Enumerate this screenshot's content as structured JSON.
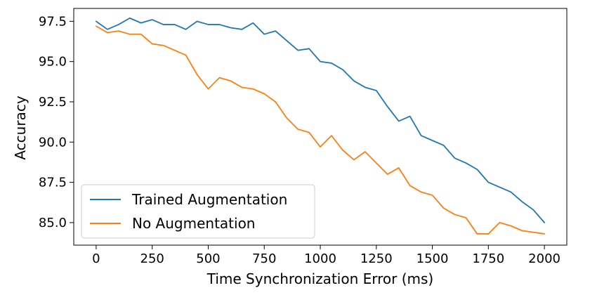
{
  "chart_data": {
    "type": "line",
    "xlabel": "Time Synchronization Error (ms)",
    "ylabel": "Accuracy",
    "xlim": [
      -100,
      2100
    ],
    "ylim": [
      83.6,
      98.3
    ],
    "x_ticks": [
      0,
      250,
      500,
      750,
      1000,
      1250,
      1500,
      1750,
      2000
    ],
    "x_tick_labels": [
      "0",
      "250",
      "500",
      "750",
      "1000",
      "1250",
      "1500",
      "1750",
      "2000"
    ],
    "y_ticks": [
      85.0,
      87.5,
      90.0,
      92.5,
      95.0,
      97.5
    ],
    "y_tick_labels": [
      "85.0",
      "87.5",
      "90.0",
      "92.5",
      "95.0",
      "97.5"
    ],
    "grid": false,
    "legend_position": "lower-left",
    "x": [
      0,
      50,
      100,
      150,
      200,
      250,
      300,
      350,
      400,
      450,
      500,
      550,
      600,
      650,
      700,
      750,
      800,
      850,
      900,
      950,
      1000,
      1050,
      1100,
      1150,
      1200,
      1250,
      1300,
      1350,
      1400,
      1450,
      1500,
      1550,
      1600,
      1650,
      1700,
      1750,
      1800,
      1850,
      1900,
      1950,
      2000
    ],
    "series": [
      {
        "name": "Trained Augmentation",
        "color": "#1f77b4",
        "values": [
          97.5,
          97.0,
          97.3,
          97.7,
          97.4,
          97.6,
          97.3,
          97.3,
          97.0,
          97.5,
          97.3,
          97.3,
          97.1,
          97.0,
          97.4,
          96.7,
          96.9,
          96.3,
          95.7,
          95.8,
          95.0,
          94.9,
          94.5,
          93.8,
          93.4,
          93.2,
          92.2,
          91.3,
          91.6,
          90.4,
          90.1,
          89.8,
          89.0,
          88.7,
          88.3,
          87.5,
          87.2,
          86.9,
          86.3,
          85.8,
          85.0
        ]
      },
      {
        "name": "No Augmentation",
        "color": "#ff7f0e",
        "values": [
          97.2,
          96.8,
          96.9,
          96.7,
          96.7,
          96.1,
          96.0,
          95.7,
          95.4,
          94.2,
          93.3,
          94.0,
          93.8,
          93.4,
          93.3,
          93.0,
          92.5,
          91.5,
          90.8,
          90.6,
          89.7,
          90.4,
          89.5,
          88.9,
          89.4,
          88.7,
          88.0,
          88.4,
          87.3,
          86.9,
          86.7,
          85.9,
          85.5,
          85.3,
          84.3,
          84.3,
          85.0,
          84.8,
          84.5,
          84.4,
          84.3
        ]
      }
    ]
  }
}
